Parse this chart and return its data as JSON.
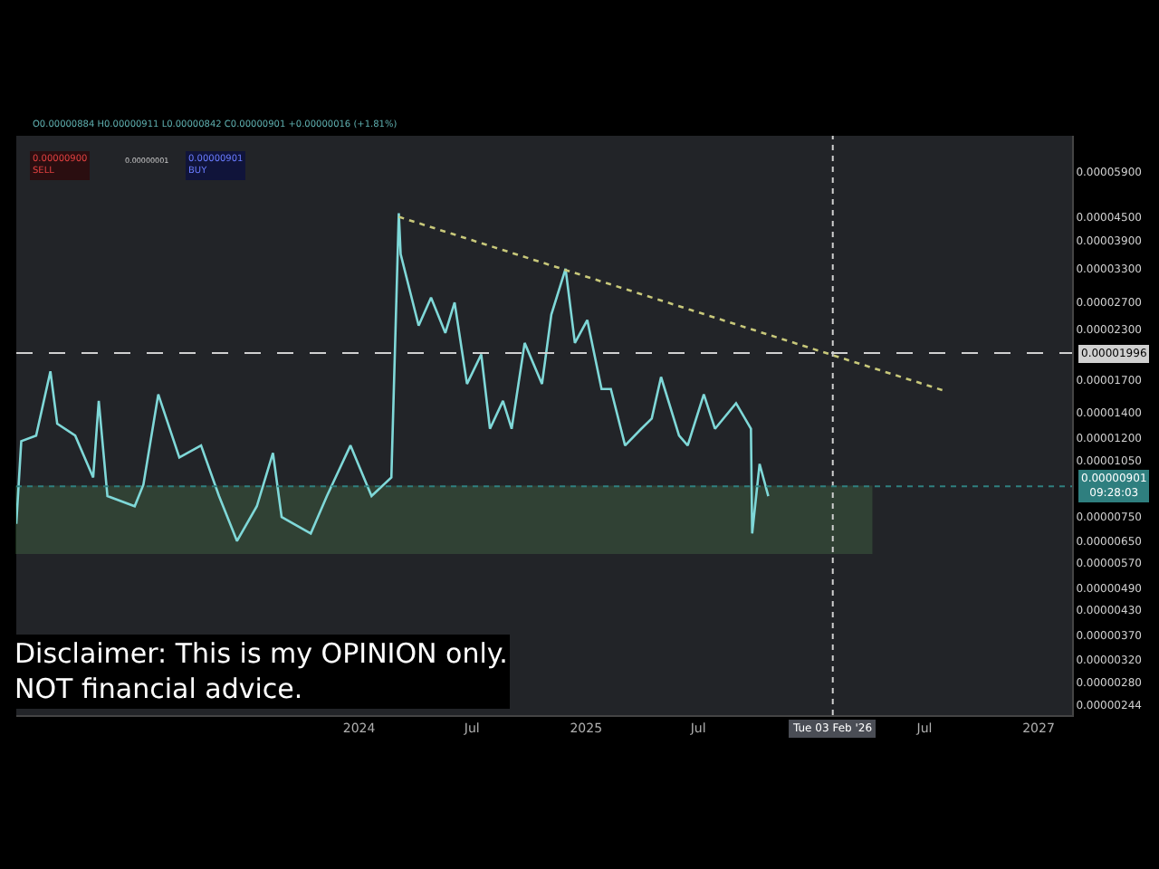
{
  "chart_data": {
    "type": "line",
    "log": "y",
    "grid": false,
    "xlim": [
      "2022-06-27",
      "2027-02-24"
    ],
    "xticks": [
      {
        "value": "2024-01-01",
        "label": "2024"
      },
      {
        "value": "2024-07-01",
        "label": "Jul"
      },
      {
        "value": "2025-01-01",
        "label": "2025"
      },
      {
        "value": "2025-07-01",
        "label": "Jul"
      },
      {
        "value": "2026-07-01",
        "label": "Jul"
      },
      {
        "value": "2027-01-01",
        "label": "2027"
      }
    ],
    "ylim": [
      2.3e-06,
      7.3e-05
    ],
    "yticks": [
      {
        "value": 5.9e-05,
        "label": "0.00005900"
      },
      {
        "value": 4.5e-05,
        "label": "0.00004500"
      },
      {
        "value": 3.9e-05,
        "label": "0.00003900"
      },
      {
        "value": 3.3e-05,
        "label": "0.00003300"
      },
      {
        "value": 2.7e-05,
        "label": "0.00002700"
      },
      {
        "value": 2.3e-05,
        "label": "0.00002300"
      },
      {
        "value": 1.7e-05,
        "label": "0.00001700"
      },
      {
        "value": 1.4e-05,
        "label": "0.00001400"
      },
      {
        "value": 1.2e-05,
        "label": "0.00001200"
      },
      {
        "value": 1.05e-05,
        "label": "0.00001050"
      },
      {
        "value": 7.5e-06,
        "label": "0.00000750"
      },
      {
        "value": 6.5e-06,
        "label": "0.00000650"
      },
      {
        "value": 5.7e-06,
        "label": "0.00000570"
      },
      {
        "value": 4.9e-06,
        "label": "0.00000490"
      },
      {
        "value": 4.3e-06,
        "label": "0.00000430"
      },
      {
        "value": 3.7e-06,
        "label": "0.00000370"
      },
      {
        "value": 3.2e-06,
        "label": "0.00000320"
      },
      {
        "value": 2.8e-06,
        "label": "0.00000280"
      },
      {
        "value": 2.44e-06,
        "label": "0.00000244"
      }
    ],
    "series": [
      {
        "color": "#7fd8d8",
        "x": [
          "2022-06-27",
          "2022-07-05",
          "2022-07-29",
          "2022-08-21",
          "2022-09-01",
          "2022-09-30",
          "2022-10-29",
          "2022-11-07",
          "2022-11-21",
          "2023-01-04",
          "2023-01-18",
          "2023-02-11",
          "2023-03-17",
          "2023-04-21",
          "2023-05-20",
          "2023-06-18",
          "2023-07-20",
          "2023-08-15",
          "2023-08-29",
          "2023-10-15",
          "2023-11-10",
          "2023-12-18",
          "2024-01-21",
          "2024-02-22",
          "2024-03-05",
          "2024-03-08",
          "2024-04-06",
          "2024-04-26",
          "2024-05-19",
          "2024-06-03",
          "2024-06-23",
          "2024-07-16",
          "2024-07-30",
          "2024-08-20",
          "2024-09-03",
          "2024-09-24",
          "2024-10-22",
          "2024-11-06",
          "2024-11-29",
          "2024-12-14",
          "2025-01-03",
          "2025-01-26",
          "2025-02-10",
          "2025-03-05",
          "2025-03-31",
          "2025-04-17",
          "2025-05-02",
          "2025-05-31",
          "2025-06-14",
          "2025-07-10",
          "2025-07-28",
          "2025-08-31",
          "2025-09-24",
          "2025-09-26",
          "2025-10-08",
          "2025-10-22"
        ],
        "values": [
          7.2e-06,
          1.18e-05,
          1.22e-05,
          1.79e-05,
          1.31e-05,
          1.22e-05,
          9.5e-06,
          1.5e-05,
          8.5e-06,
          8e-06,
          9.1e-06,
          1.56e-05,
          1.07e-05,
          1.15e-05,
          8.5e-06,
          6.5e-06,
          8e-06,
          1.1e-05,
          7.5e-06,
          6.8e-06,
          8.5e-06,
          1.15e-05,
          8.5e-06,
          9.5e-06,
          4.6e-05,
          3.6e-05,
          2.35e-05,
          2.78e-05,
          2.25e-05,
          2.7e-05,
          1.66e-05,
          1.98e-05,
          1.27e-05,
          1.5e-05,
          1.27e-05,
          2.12e-05,
          1.66e-05,
          2.51e-05,
          3.3e-05,
          2.12e-05,
          2.43e-05,
          1.61e-05,
          1.61e-05,
          1.15e-05,
          1.27e-05,
          1.35e-05,
          1.73e-05,
          1.22e-05,
          1.15e-05,
          1.56e-05,
          1.27e-05,
          1.48e-05,
          1.27e-05,
          6.8e-06,
          1.03e-05,
          8.5e-06
        ]
      },
      {
        "color": "#c8c87a",
        "line_style": "dotted",
        "x": [
          "2024-03-05",
          "2026-08-04"
        ],
        "values": [
          4.5e-05,
          1.59e-05
        ]
      }
    ],
    "ref_lines": [
      {
        "axis": "y",
        "value": 1.996e-05,
        "label": "0.00001996",
        "color": "#d0d0d0",
        "line_style": "dashed"
      },
      {
        "axis": "x",
        "value": "2026-02-03",
        "label": "Tue 03 Feb '26",
        "color": "#d0d0d0",
        "line_style": "dotted"
      },
      {
        "axis": "y",
        "value": 9.01e-06,
        "label": "0.00000901\n09:28:03",
        "color": "#2f7f7f",
        "line_style": "dotted"
      }
    ],
    "bands": [
      {
        "axis": "y",
        "from": 6.05e-06,
        "to": 9e-06,
        "color": "#5a9a5a"
      }
    ],
    "annotations": [
      "O0.00000884 H0.00000911 L0.00000842 C0.00000901 +0.00000016 (+1.81%)",
      "0.00000900\nSELL",
      "0.00000001",
      "0.00000901\nBUY",
      "Disclaimer: This is my OPINION only.\nNOT financial advice."
    ]
  }
}
